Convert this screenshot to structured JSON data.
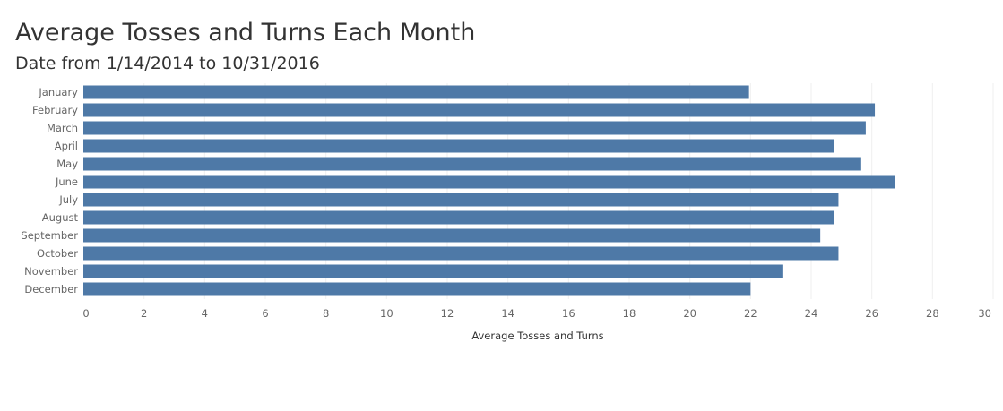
{
  "chart_data": {
    "type": "bar",
    "orientation": "horizontal",
    "title": "Average Tosses and Turns Each Month",
    "subtitle": "Date from 1/14/2014 to 10/31/2016",
    "xlabel": "Average Tosses and Turns",
    "ylabel": "",
    "categories": [
      "January",
      "February",
      "March",
      "April",
      "May",
      "June",
      "July",
      "August",
      "September",
      "October",
      "November",
      "December"
    ],
    "values": [
      21.95,
      26.1,
      25.8,
      24.75,
      25.65,
      26.75,
      24.9,
      24.75,
      24.3,
      24.9,
      23.05,
      22.0
    ],
    "xlim": [
      0,
      30
    ],
    "x_ticks": [
      "0",
      "2",
      "4",
      "6",
      "8",
      "10",
      "12",
      "14",
      "16",
      "18",
      "20",
      "22",
      "24",
      "26",
      "28",
      "30"
    ],
    "grid": true,
    "legend": "none",
    "bar_color": "#4e79a7"
  }
}
